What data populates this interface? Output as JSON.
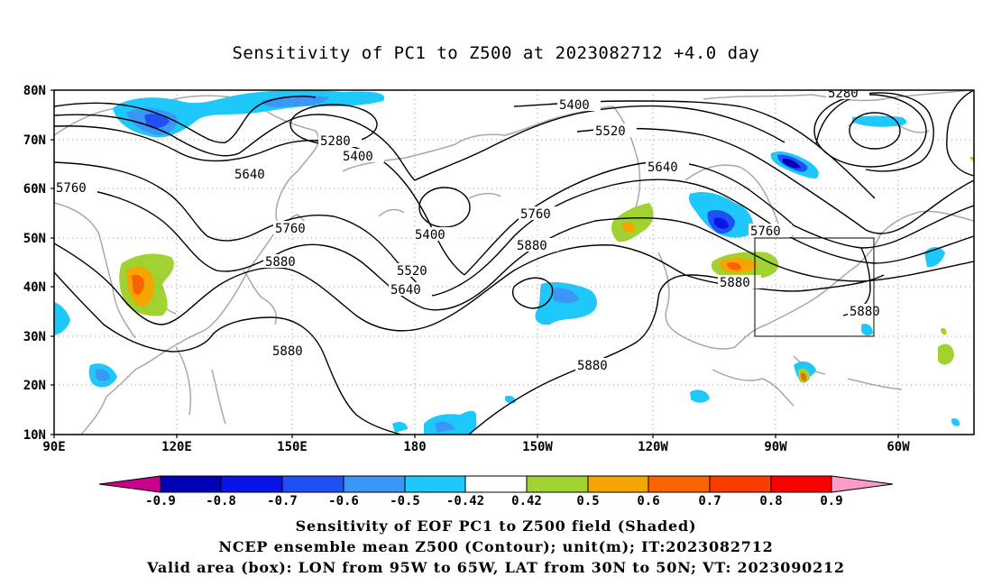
{
  "title": "Sensitivity of PC1 to Z500 at 2023082712 +4.0 day",
  "lat_labels": [
    "80N",
    "70N",
    "60N",
    "50N",
    "40N",
    "30N",
    "20N",
    "10N"
  ],
  "lon_labels": [
    "90E",
    "120E",
    "150E",
    "180",
    "150W",
    "120W",
    "90W",
    "60W"
  ],
  "contour_labels": {
    "l5280a": "5280",
    "l5280b": "5280",
    "l5400a": "5400",
    "l5400b": "5400",
    "l5400c": "5400",
    "l5520a": "5520",
    "l5520b": "5520",
    "l5640a": "5640",
    "l5640b": "5640",
    "l5640c": "5640",
    "l5760a": "5760",
    "l5760b": "5760",
    "l5760c": "5760",
    "l5760d": "5760",
    "l5880a": "5880",
    "l5880b": "5880",
    "l5880c": "5880",
    "l5880d": "5880",
    "l5880e": "5880"
  },
  "colorbar": {
    "labels": [
      "-0.9",
      "-0.8",
      "-0.7",
      "-0.6",
      "-0.5",
      "-0.42",
      "0.42",
      "0.5",
      "0.6",
      "0.7",
      "0.8",
      "0.9"
    ],
    "colors": [
      "#c8008c",
      "#0000b4",
      "#0a14e6",
      "#1e50f5",
      "#3c96f5",
      "#1ec8fa",
      "#ffffff",
      "#a0d232",
      "#f5a500",
      "#fa6400",
      "#fa3c00",
      "#fa0000",
      "#ff9bc8"
    ]
  },
  "captions": {
    "line1": "Sensitivity of EOF PC1 to Z500 field (Shaded)",
    "line2": "NCEP ensemble mean Z500 (Contour); unit(m); IT:2023082712",
    "line3": "Valid area (box): LON from 95W to 65W, LAT from 30N to 50N; VT: 2023090212"
  }
}
